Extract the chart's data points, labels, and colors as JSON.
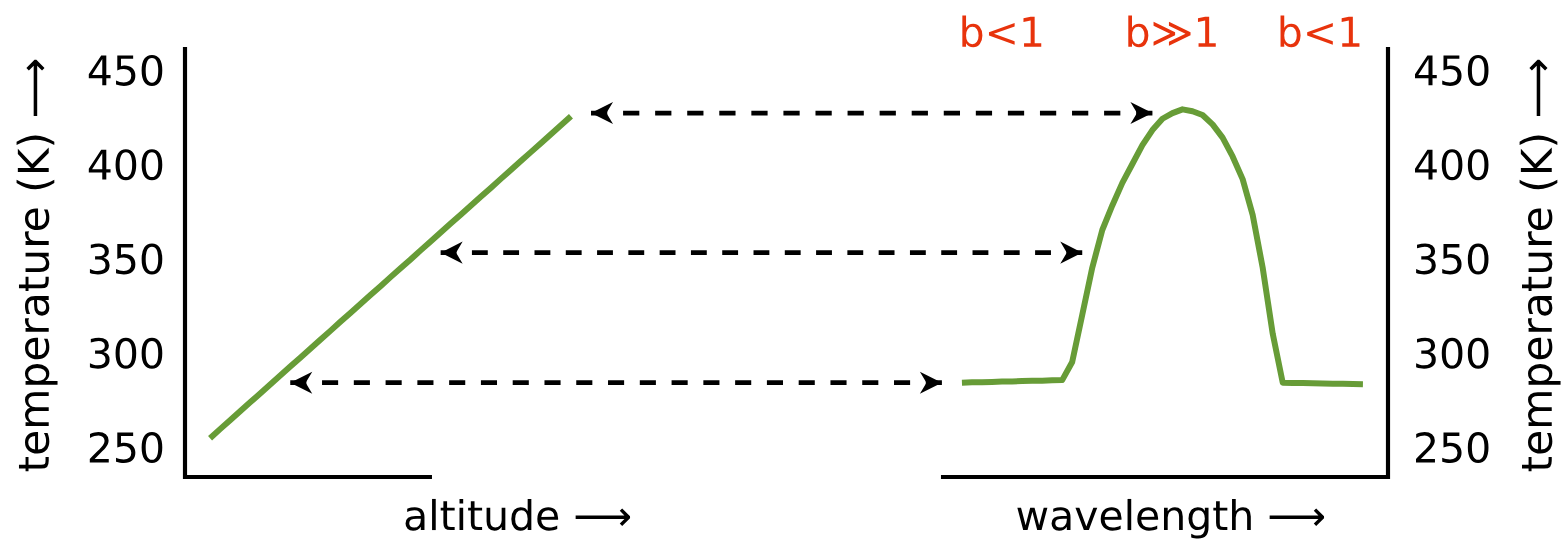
{
  "chart_data": {
    "type": "line",
    "categories": [
      null,
      null,
      null,
      null,
      null,
      null,
      null,
      null,
      null,
      null,
      null,
      null,
      null,
      null,
      null,
      null,
      null,
      null,
      null,
      null,
      null,
      null,
      null,
      null,
      null,
      null,
      null,
      null,
      null,
      null,
      null,
      null,
      null,
      null,
      null,
      null,
      null,
      null,
      null,
      null,
      null,
      null,
      null,
      null,
      null,
      null,
      null,
      null,
      null,
      null,
      null,
      null,
      null,
      null,
      null,
      null,
      null,
      null,
      null,
      null,
      null,
      null,
      null,
      null,
      null,
      null,
      null,
      null,
      null,
      null,
      null,
      null,
      null,
      null,
      null,
      null,
      null,
      null,
      null,
      null,
      null,
      null,
      null,
      null,
      null,
      null,
      null,
      null,
      null,
      null,
      null,
      null,
      null,
      null,
      null,
      null,
      null,
      null,
      null,
      null,
      null,
      null,
      null,
      null,
      null,
      null,
      null,
      null,
      null,
      null,
      null,
      null,
      null,
      null,
      null,
      null,
      null,
      null,
      null,
      null
    ],
    "xlabel": "altitude ⟶",
    "ylabel": "temperature (K) ⟶",
    "y2label": "temperature (K) ⟶",
    "ylim": [
      234,
      461
    ],
    "yticks": [
      250,
      300,
      350,
      400,
      450
    ],
    "y2lim": [
      234,
      461
    ],
    "y2ticks": [
      250,
      300,
      350,
      400,
      450
    ],
    "annotations": [
      "b<1",
      "b≫1",
      "b<1",
      "wavelength ⟶"
    ],
    "series": [
      {
        "color": "#679c37",
        "line_style": "solid",
        "values": [
          null,
          null,
          254.6,
          259.4,
          264.1,
          268.9,
          273.6,
          278.3,
          283.1,
          287.8,
          292.6,
          297.3,
          302.0,
          306.8,
          311.5,
          316.3,
          321.0,
          325.7,
          330.5,
          335.2,
          340.0,
          344.7,
          349.4,
          354.2,
          358.9,
          363.7,
          368.4,
          373.1,
          377.9,
          382.6,
          387.3,
          392.1,
          396.8,
          401.6,
          406.3,
          411.0,
          415.8,
          420.5,
          425.3,
          null,
          null,
          null,
          null,
          null,
          null,
          null,
          null,
          null,
          null,
          null,
          null,
          null,
          null,
          null,
          null,
          null,
          null,
          null,
          null,
          null,
          null,
          null,
          null,
          null,
          null,
          null,
          null,
          null,
          null,
          null,
          null,
          null,
          null,
          null,
          null,
          null,
          null,
          null,
          null,
          null,
          null,
          null,
          null,
          null,
          null,
          null,
          null,
          null,
          null,
          null,
          null,
          null,
          null,
          null,
          null,
          null,
          null,
          null,
          null,
          null,
          null,
          null,
          null,
          null,
          null,
          null,
          null,
          null,
          null,
          null,
          null,
          null,
          null,
          null,
          null,
          null,
          null,
          null,
          null,
          null
        ]
      },
      {
        "color": "#679c37",
        "line_style": "solid",
        "values": [
          null,
          null,
          null,
          null,
          null,
          null,
          null,
          null,
          null,
          null,
          null,
          null,
          null,
          null,
          null,
          null,
          null,
          null,
          null,
          null,
          null,
          null,
          null,
          null,
          null,
          null,
          null,
          null,
          null,
          null,
          null,
          null,
          null,
          null,
          null,
          null,
          null,
          null,
          null,
          null,
          null,
          null,
          null,
          null,
          null,
          null,
          null,
          null,
          null,
          null,
          null,
          null,
          null,
          null,
          null,
          null,
          null,
          null,
          null,
          null,
          null,
          null,
          null,
          null,
          null,
          null,
          null,
          null,
          null,
          null,
          null,
          null,
          null,
          null,
          null,
          null,
          null,
          284.0,
          284.2,
          284.3,
          284.4,
          284.6,
          284.7,
          284.9,
          285.0,
          285.1,
          285.3,
          285.4,
          295,
          320,
          345,
          365,
          378,
          390,
          400,
          410,
          418,
          424,
          427,
          429,
          428,
          426,
          421,
          414,
          404,
          392,
          373,
          345,
          310,
          284.0,
          283.9,
          283.8,
          283.7,
          283.6,
          283.5,
          283.4,
          283.3,
          283.2,
          null,
          null
        ]
      },
      {
        "color": "#000000",
        "line_style": "dashed",
        "values": [
          null,
          null,
          null,
          null,
          null,
          null,
          null,
          null,
          null,
          null,
          null,
          null,
          null,
          null,
          null,
          null,
          null,
          null,
          null,
          null,
          null,
          null,
          null,
          null,
          null,
          null,
          null,
          null,
          null,
          null,
          null,
          null,
          null,
          null,
          null,
          null,
          null,
          null,
          null,
          null,
          427,
          427,
          427,
          427,
          427,
          427,
          427,
          427,
          427,
          427,
          427,
          427,
          427,
          427,
          427,
          427,
          427,
          427,
          427,
          427,
          427,
          427,
          427,
          427,
          427,
          427,
          427,
          427,
          427,
          427,
          427,
          427,
          427,
          427,
          427,
          427,
          427,
          427,
          427,
          427,
          427,
          427,
          427,
          427,
          427,
          427,
          427,
          427,
          427,
          427,
          427,
          427,
          427,
          427,
          427,
          427,
          427,
          null,
          null,
          null,
          null,
          null,
          null,
          null,
          null,
          null,
          null,
          null,
          null,
          null,
          null,
          null,
          null,
          null,
          null,
          null,
          null,
          null,
          null,
          null
        ]
      },
      {
        "color": "#000000",
        "line_style": "dashed",
        "values": [
          null,
          null,
          null,
          null,
          null,
          null,
          null,
          null,
          null,
          null,
          null,
          null,
          null,
          null,
          null,
          null,
          null,
          null,
          null,
          null,
          null,
          null,
          null,
          null,
          null,
          353,
          353,
          353,
          353,
          353,
          353,
          353,
          353,
          353,
          353,
          353,
          353,
          353,
          353,
          353,
          353,
          353,
          353,
          353,
          353,
          353,
          353,
          353,
          353,
          353,
          353,
          353,
          353,
          353,
          353,
          353,
          353,
          353,
          353,
          353,
          353,
          353,
          353,
          353,
          353,
          353,
          353,
          353,
          353,
          353,
          353,
          353,
          353,
          353,
          353,
          353,
          353,
          353,
          353,
          353,
          353,
          353,
          353,
          353,
          353,
          353,
          353,
          353,
          353,
          353,
          null,
          null,
          null,
          null,
          null,
          null,
          null,
          null,
          null,
          null,
          null,
          null,
          null,
          null,
          null,
          null,
          null,
          null,
          null,
          null,
          null,
          null,
          null,
          null,
          null,
          null,
          null,
          null,
          null,
          null
        ]
      },
      {
        "color": "#000000",
        "line_style": "dashed",
        "values": [
          null,
          null,
          null,
          null,
          null,
          null,
          null,
          null,
          null,
          null,
          284,
          284,
          284,
          284,
          284,
          284,
          284,
          284,
          284,
          284,
          284,
          284,
          284,
          284,
          284,
          284,
          284,
          284,
          284,
          284,
          284,
          284,
          284,
          284,
          284,
          284,
          284,
          284,
          284,
          284,
          284,
          284,
          284,
          284,
          284,
          284,
          284,
          284,
          284,
          284,
          284,
          284,
          284,
          284,
          284,
          284,
          284,
          284,
          284,
          284,
          284,
          284,
          284,
          284,
          284,
          284,
          284,
          284,
          284,
          284,
          284,
          284,
          284,
          284,
          284,
          284,
          null,
          null,
          null,
          null,
          null,
          null,
          null,
          null,
          null,
          null,
          null,
          null,
          null,
          null,
          null,
          null,
          null,
          null,
          null,
          null,
          null,
          null,
          null,
          null,
          null,
          null,
          null,
          null,
          null,
          null,
          null,
          null,
          null,
          null,
          null,
          null,
          null,
          null,
          null,
          null,
          null,
          null,
          null,
          null
        ]
      }
    ]
  }
}
